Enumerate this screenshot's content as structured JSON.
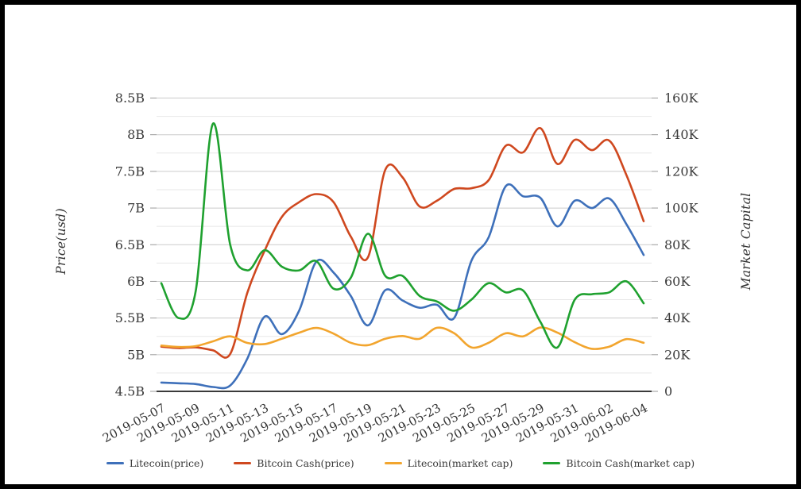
{
  "frame": {
    "border_color": "#000000",
    "background": "#ffffff"
  },
  "chart_data": {
    "type": "line",
    "title": "",
    "categories": [
      "2019-05-07",
      "2019-05-08",
      "2019-05-09",
      "2019-05-10",
      "2019-05-11",
      "2019-05-12",
      "2019-05-13",
      "2019-05-14",
      "2019-05-15",
      "2019-05-16",
      "2019-05-17",
      "2019-05-18",
      "2019-05-19",
      "2019-05-20",
      "2019-05-21",
      "2019-05-22",
      "2019-05-23",
      "2019-05-24",
      "2019-05-25",
      "2019-05-26",
      "2019-05-27",
      "2019-05-28",
      "2019-05-29",
      "2019-05-30",
      "2019-05-31",
      "2019-06-01",
      "2019-06-02",
      "2019-06-03",
      "2019-06-04"
    ],
    "x_tick_labels": [
      "2019-05-07",
      "2019-05-09",
      "2019-05-11",
      "2019-05-13",
      "2019-05-15",
      "2019-05-17",
      "2019-05-19",
      "2019-05-21",
      "2019-05-23",
      "2019-05-25",
      "2019-05-27",
      "2019-05-29",
      "2019-05-31",
      "2019-06-02",
      "2019-06-04"
    ],
    "axes": {
      "left": {
        "title": "Price(usd)",
        "min": 4.5,
        "max": 8.5,
        "ticks": [
          "4.5B",
          "5B",
          "5.5B",
          "6B",
          "6.5B",
          "7B",
          "7.5B",
          "8B",
          "8.5B"
        ]
      },
      "right": {
        "title": "Market Capital",
        "min": 0,
        "max": 160,
        "ticks": [
          "0",
          "20K",
          "40K",
          "60K",
          "80K",
          "100K",
          "120K",
          "140K",
          "160K"
        ]
      }
    },
    "grid": {
      "show": true,
      "minor_step": 0.25,
      "major_step": 0.5
    },
    "legend_position": "bottom",
    "series": [
      {
        "name": "Litecoin(price)",
        "axis": "left",
        "color": "#3e70ba",
        "values": [
          4.62,
          4.61,
          4.6,
          4.56,
          4.58,
          4.95,
          5.52,
          5.28,
          5.6,
          6.27,
          6.12,
          5.8,
          5.4,
          5.88,
          5.74,
          5.64,
          5.68,
          5.5,
          6.28,
          6.6,
          7.3,
          7.16,
          7.14,
          6.75,
          7.1,
          7.0,
          7.13,
          6.78,
          6.36
        ]
      },
      {
        "name": "Bitcoin Cash(price)",
        "axis": "left",
        "color": "#cf481f",
        "values": [
          5.11,
          5.09,
          5.1,
          5.06,
          5.01,
          5.85,
          6.42,
          6.88,
          7.08,
          7.19,
          7.08,
          6.61,
          6.33,
          7.52,
          7.42,
          7.02,
          7.1,
          7.26,
          7.27,
          7.38,
          7.85,
          7.76,
          8.09,
          7.6,
          7.93,
          7.79,
          7.92,
          7.45,
          6.82
        ]
      },
      {
        "name": "Litecoin(market cap)",
        "axis": "right",
        "color": "#f2a52e",
        "values": [
          25.0,
          24.2,
          24.7,
          27.3,
          30.0,
          26.4,
          25.8,
          28.7,
          32.0,
          34.6,
          31.5,
          26.5,
          25.2,
          28.7,
          30.2,
          28.7,
          34.7,
          31.7,
          24.0,
          26.5,
          31.7,
          30.0,
          34.8,
          32.0,
          26.8,
          23.2,
          24.4,
          28.5,
          26.5
        ]
      },
      {
        "name": "Bitcoin Cash(market cap)",
        "axis": "right",
        "color": "#1fa12f",
        "values": [
          59,
          40,
          55,
          146,
          80,
          66,
          77,
          68,
          66,
          71,
          56,
          62,
          86,
          63,
          63,
          52,
          49,
          44,
          50,
          59,
          54,
          55,
          38,
          24,
          50,
          53,
          54,
          60,
          48
        ]
      }
    ],
    "colors": {
      "grid_minor": "#e7e7e7",
      "grid_major": "#cbcbcb",
      "baseline": "#1f1f1f",
      "tick_mark": "#999999",
      "tick_label": "#3a3a3a"
    }
  }
}
